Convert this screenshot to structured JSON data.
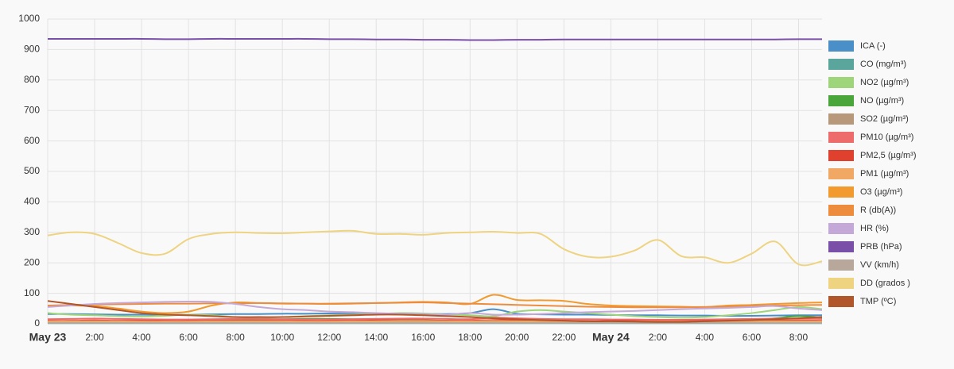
{
  "chart_data": {
    "type": "line",
    "categories": [
      "May 23",
      null,
      "2:00",
      null,
      "4:00",
      null,
      "6:00",
      null,
      "8:00",
      null,
      "10:00",
      null,
      "12:00",
      null,
      "14:00",
      null,
      "16:00",
      null,
      "18:00",
      null,
      "20:00",
      null,
      "22:00",
      null,
      "May 24",
      null,
      "2:00",
      null,
      "4:00",
      null,
      "6:00",
      null,
      "8:00",
      null
    ],
    "ylim": [
      0,
      1000
    ],
    "yticks": [
      0,
      100,
      200,
      300,
      400,
      500,
      600,
      700,
      800,
      900,
      1000
    ],
    "grid": true,
    "series": [
      {
        "name": "ICA (-)",
        "color": "#4a8fc8",
        "values": [
          32,
          32,
          31,
          30,
          30,
          29,
          30,
          31,
          32,
          32,
          33,
          33,
          34,
          34,
          34,
          33,
          33,
          32,
          35,
          48,
          33,
          31,
          30,
          30,
          29,
          28,
          28,
          27,
          27,
          26,
          26,
          27,
          28,
          28
        ]
      },
      {
        "name": "CO (mg/m³)",
        "color": "#5aa59c",
        "values": [
          2,
          2,
          2,
          2,
          2,
          2,
          2,
          2,
          2,
          2,
          2,
          2,
          2,
          2,
          2,
          2,
          2,
          2,
          2,
          2,
          2,
          2,
          2,
          2,
          2,
          2,
          2,
          2,
          2,
          2,
          2,
          2,
          2,
          2
        ]
      },
      {
        "name": "NO2 (µg/m³)",
        "color": "#9ed47a",
        "values": [
          35,
          30,
          28,
          25,
          24,
          26,
          30,
          28,
          22,
          20,
          22,
          25,
          28,
          30,
          32,
          35,
          34,
          30,
          28,
          25,
          40,
          45,
          40,
          35,
          30,
          25,
          22,
          20,
          22,
          28,
          35,
          45,
          55,
          48
        ]
      },
      {
        "name": "NO (µg/m³)",
        "color": "#4aa53a",
        "values": [
          8,
          7,
          6,
          5,
          5,
          6,
          8,
          10,
          12,
          14,
          15,
          16,
          16,
          15,
          14,
          13,
          12,
          10,
          8,
          6,
          5,
          5,
          6,
          6,
          5,
          5,
          4,
          4,
          5,
          8,
          12,
          18,
          25,
          20
        ]
      },
      {
        "name": "SO2 (µg/m³)",
        "color": "#b8987a",
        "values": [
          5,
          5,
          5,
          5,
          5,
          5,
          5,
          5,
          5,
          5,
          5,
          5,
          5,
          5,
          5,
          5,
          5,
          5,
          5,
          5,
          5,
          5,
          5,
          5,
          5,
          5,
          5,
          5,
          5,
          5,
          5,
          5,
          5,
          5
        ]
      },
      {
        "name": "PM10 (µg/m³)",
        "color": "#ee6b6b",
        "values": [
          15,
          16,
          17,
          16,
          15,
          14,
          14,
          15,
          16,
          16,
          15,
          14,
          14,
          15,
          16,
          17,
          17,
          16,
          15,
          20,
          18,
          16,
          15,
          15,
          14,
          14,
          13,
          13,
          14,
          15,
          16,
          17,
          17,
          16
        ]
      },
      {
        "name": "PM2,5 (µg/m³)",
        "color": "#e0402e",
        "values": [
          10,
          10,
          11,
          10,
          10,
          9,
          9,
          10,
          10,
          10,
          10,
          9,
          9,
          10,
          11,
          11,
          11,
          10,
          10,
          12,
          11,
          10,
          10,
          9,
          9,
          9,
          8,
          8,
          9,
          10,
          10,
          11,
          11,
          10
        ]
      },
      {
        "name": "PM1 (µg/m³)",
        "color": "#f2a865",
        "values": [
          8,
          8,
          8,
          8,
          7,
          7,
          7,
          8,
          8,
          8,
          8,
          7,
          7,
          8,
          8,
          9,
          9,
          8,
          8,
          9,
          8,
          8,
          8,
          7,
          7,
          7,
          7,
          7,
          7,
          8,
          8,
          8,
          8,
          8
        ]
      },
      {
        "name": "O3 (µg/m³)",
        "color": "#f29a2e",
        "values": [
          58,
          60,
          58,
          50,
          40,
          35,
          40,
          60,
          70,
          68,
          66,
          66,
          65,
          66,
          68,
          70,
          72,
          70,
          65,
          95,
          78,
          77,
          75,
          65,
          60,
          58,
          57,
          56,
          55,
          60,
          62,
          65,
          68,
          70
        ]
      },
      {
        "name": "R (db(A))",
        "color": "#ee8c3e",
        "values": [
          60,
          62,
          63,
          64,
          65,
          66,
          66,
          67,
          67,
          68,
          67,
          66,
          66,
          67,
          68,
          69,
          70,
          68,
          66,
          64,
          62,
          60,
          58,
          56,
          55,
          54,
          54,
          54,
          55,
          56,
          58,
          60,
          61,
          62
        ]
      },
      {
        "name": "HR (%)",
        "color": "#c4a8d8",
        "values": [
          55,
          60,
          65,
          68,
          70,
          72,
          73,
          72,
          65,
          55,
          48,
          45,
          40,
          38,
          35,
          33,
          32,
          30,
          35,
          30,
          30,
          32,
          35,
          38,
          40,
          42,
          45,
          48,
          50,
          52,
          55,
          58,
          50,
          45
        ]
      },
      {
        "name": "PRB (hPa)",
        "color": "#7a4fa8",
        "values": [
          935,
          935,
          935,
          935,
          935,
          934,
          934,
          935,
          935,
          935,
          935,
          935,
          934,
          934,
          933,
          933,
          932,
          932,
          931,
          931,
          932,
          932,
          933,
          933,
          933,
          933,
          933,
          933,
          933,
          933,
          933,
          933,
          934,
          934
        ]
      },
      {
        "name": "VV (km/h)",
        "color": "#b8a89c",
        "values": [
          3,
          3,
          3,
          3,
          3,
          3,
          3,
          3,
          3,
          3,
          3,
          3,
          3,
          3,
          3,
          3,
          3,
          3,
          3,
          3,
          3,
          3,
          3,
          3,
          3,
          3,
          3,
          3,
          3,
          3,
          3,
          3,
          3,
          3
        ]
      },
      {
        "name": "DD (grados  )",
        "color": "#eed380",
        "values": [
          290,
          300,
          295,
          265,
          232,
          230,
          278,
          295,
          300,
          298,
          297,
          300,
          303,
          305,
          295,
          295,
          292,
          298,
          300,
          302,
          298,
          295,
          245,
          220,
          220,
          240,
          275,
          222,
          218,
          200,
          230,
          270,
          195,
          205
        ]
      },
      {
        "name": "TMP (ºC)",
        "color": "#b0562a",
        "values": [
          75,
          65,
          55,
          45,
          35,
          30,
          28,
          25,
          22,
          22,
          22,
          24,
          26,
          28,
          30,
          30,
          28,
          25,
          22,
          18,
          15,
          12,
          10,
          8,
          8,
          7,
          6,
          6,
          8,
          10,
          12,
          15,
          18,
          22
        ]
      }
    ]
  }
}
